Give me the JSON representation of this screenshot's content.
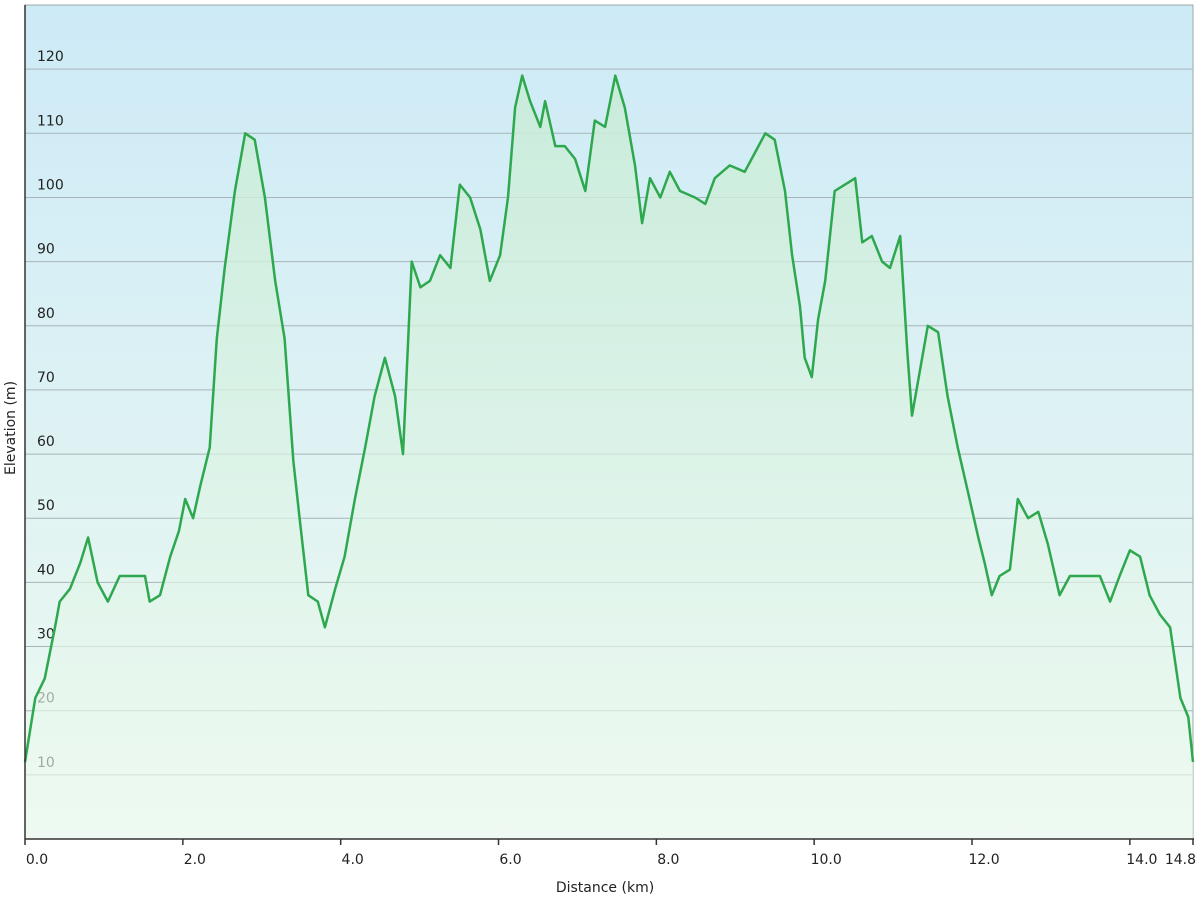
{
  "chart_data": {
    "type": "area",
    "x_label": "Distance  (km)",
    "y_label": "Elevation (m)",
    "x": [
      0,
      0.13,
      0.25,
      0.38,
      0.44,
      0.57,
      0.7,
      0.8,
      0.92,
      1.05,
      1.2,
      1.33,
      1.52,
      1.58,
      1.71,
      1.84,
      1.95,
      2.03,
      2.13,
      2.22,
      2.34,
      2.43,
      2.53,
      2.66,
      2.79,
      2.91,
      3.04,
      3.17,
      3.29,
      3.4,
      3.48,
      3.59,
      3.71,
      3.8,
      3.93,
      4.05,
      4.18,
      4.31,
      4.43,
      4.56,
      4.69,
      4.79,
      4.9,
      5.01,
      5.13,
      5.26,
      5.39,
      5.51,
      5.64,
      5.77,
      5.89,
      6.02,
      6.12,
      6.21,
      6.3,
      6.4,
      6.53,
      6.59,
      6.72,
      6.84,
      6.97,
      7.1,
      7.22,
      7.35,
      7.48,
      7.6,
      7.73,
      7.82,
      7.92,
      8.05,
      8.17,
      8.3,
      8.49,
      8.62,
      8.74,
      8.93,
      9.12,
      9.25,
      9.38,
      9.5,
      9.63,
      9.72,
      9.82,
      9.88,
      9.97,
      10.05,
      10.14,
      10.26,
      10.39,
      10.52,
      10.61,
      10.73,
      10.86,
      10.96,
      11.09,
      11.18,
      11.24,
      11.34,
      11.44,
      11.57,
      11.69,
      11.82,
      11.95,
      12.08,
      12.16,
      12.25,
      12.35,
      12.48,
      12.58,
      12.71,
      12.84,
      12.96,
      13.11,
      13.24,
      13.43,
      13.62,
      13.75,
      13.87,
      14.0,
      14.13,
      14.25,
      14.38,
      14.51,
      14.64,
      14.74,
      14.8
    ],
    "series": [
      {
        "color": "#2ea84e",
        "values": [
          12,
          22,
          25,
          33,
          37,
          39,
          43,
          47,
          40,
          37,
          41,
          41,
          41,
          37,
          38,
          44,
          48,
          53,
          50,
          55,
          61,
          78,
          89,
          101,
          110,
          109,
          100,
          87,
          78,
          59,
          50,
          38,
          37,
          33,
          39,
          44,
          53,
          61,
          69,
          75,
          69,
          60,
          90,
          86,
          87,
          91,
          89,
          102,
          100,
          95,
          87,
          91,
          100,
          114,
          119,
          115,
          111,
          115,
          108,
          108,
          106,
          101,
          112,
          111,
          119,
          114,
          105,
          96,
          103,
          100,
          104,
          101,
          100,
          99,
          103,
          105,
          104,
          107,
          110,
          109,
          101,
          91,
          83,
          75,
          72,
          81,
          87,
          101,
          102,
          103,
          93,
          94,
          90,
          89,
          94,
          76,
          66,
          73,
          80,
          79,
          69,
          61,
          54,
          47,
          43,
          38,
          41,
          42,
          53,
          50,
          51,
          46,
          38,
          41,
          41,
          41,
          37,
          41,
          45,
          44,
          38,
          35,
          33,
          22,
          19,
          12
        ]
      }
    ],
    "xlim": [
      0,
      14.8
    ],
    "ylim": [
      0,
      130
    ],
    "xticks": [
      {
        "value": 0,
        "label": "0.0"
      },
      {
        "value": 2,
        "label": "2.0"
      },
      {
        "value": 4,
        "label": "4.0"
      },
      {
        "value": 6,
        "label": "6.0"
      },
      {
        "value": 8,
        "label": "8.0"
      },
      {
        "value": 10,
        "label": "10.0"
      },
      {
        "value": 12,
        "label": "12.0"
      },
      {
        "value": 14,
        "label": "14.0"
      },
      14.8
    ],
    "yticks": [
      10,
      20,
      30,
      40,
      50,
      60,
      70,
      80,
      90,
      100,
      110,
      120
    ],
    "grid": true
  }
}
